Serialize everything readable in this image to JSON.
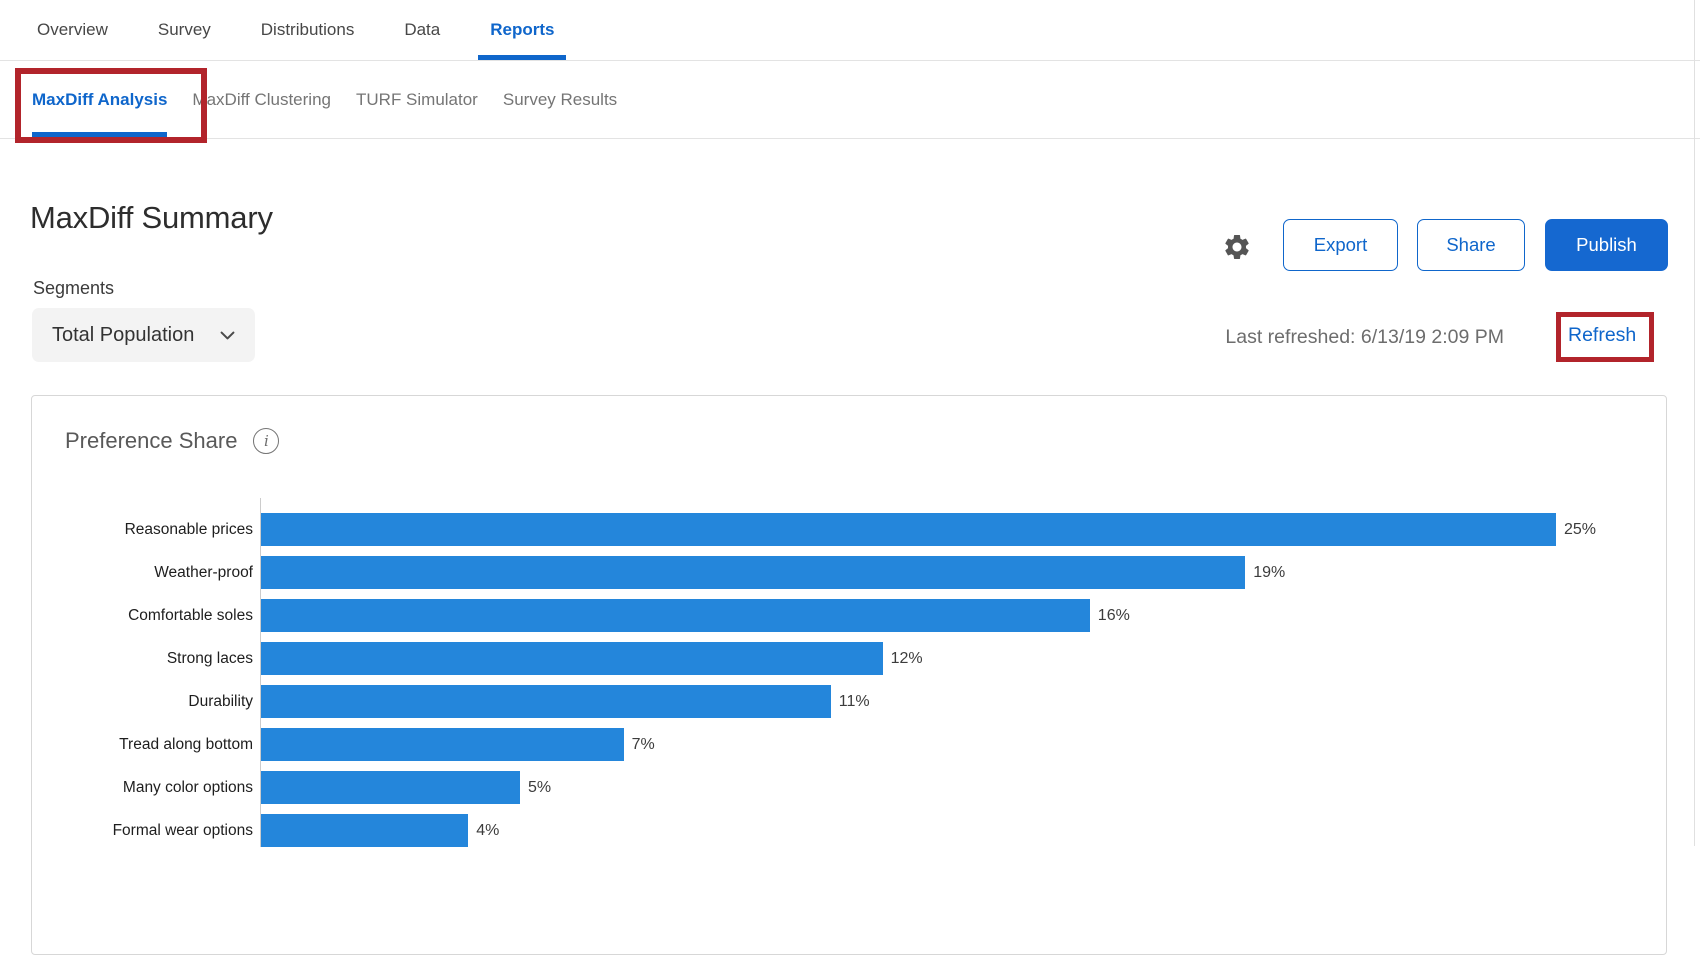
{
  "colors": {
    "accent": "#0f66cb",
    "publish_fill": "#1568d0",
    "bar_blue": "#2486db",
    "annotation_red": "#b2242b"
  },
  "nav": {
    "items": [
      {
        "label": "Overview",
        "active": false
      },
      {
        "label": "Survey",
        "active": false
      },
      {
        "label": "Distributions",
        "active": false
      },
      {
        "label": "Data",
        "active": false
      },
      {
        "label": "Reports",
        "active": true
      }
    ]
  },
  "subtabs": {
    "items": [
      {
        "label": "MaxDiff Analysis",
        "active": true
      },
      {
        "label": "MaxDiff Clustering",
        "active": false
      },
      {
        "label": "TURF Simulator",
        "active": false
      },
      {
        "label": "Survey Results",
        "active": false
      }
    ]
  },
  "header": {
    "title": "MaxDiff Summary",
    "buttons": {
      "export": "Export",
      "share": "Share",
      "publish": "Publish"
    }
  },
  "segments": {
    "label": "Segments",
    "selected_value": "Total Population"
  },
  "refresh_bar": {
    "last_refreshed": "Last refreshed: 6/13/19 2:09 PM",
    "refresh_label": "Refresh"
  },
  "card": {
    "title": "Preference Share"
  },
  "chart_data": {
    "type": "bar",
    "orientation": "horizontal",
    "title": "Preference Share",
    "categories": [
      "Reasonable prices",
      "Weather-proof",
      "Comfortable soles",
      "Strong laces",
      "Durability",
      "Tread along bottom",
      "Many color options",
      "Formal wear options"
    ],
    "values": [
      25,
      19,
      16,
      12,
      11,
      7,
      5,
      4
    ],
    "value_labels": [
      "25%",
      "19%",
      "16%",
      "12%",
      "11%",
      "7%",
      "5%",
      "4%"
    ],
    "xlabel": "",
    "ylabel": "",
    "xlim": [
      0,
      27
    ],
    "grid": false,
    "legend": false,
    "bar_color": "#2486db"
  },
  "annotations": [
    {
      "shape": "red-box",
      "target": "maxdiff-analysis-tab"
    },
    {
      "shape": "red-box",
      "target": "refresh-link"
    }
  ]
}
